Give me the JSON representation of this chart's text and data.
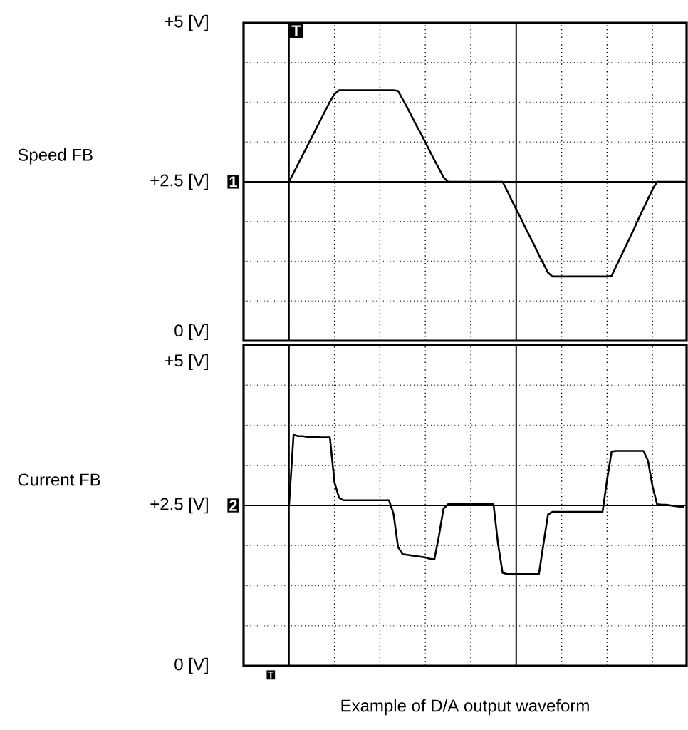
{
  "chart_data": [
    {
      "type": "line",
      "ylabel": "Speed FB",
      "categories": [
        null,
        null,
        null,
        null,
        null,
        null,
        null,
        null,
        null,
        null,
        null,
        null,
        null,
        null,
        null,
        null,
        null,
        null,
        null,
        null,
        null,
        null,
        null,
        null,
        null,
        null,
        null,
        null,
        null,
        null,
        null,
        null,
        null,
        null,
        null,
        null,
        null,
        null,
        null,
        null,
        null,
        null,
        null,
        null,
        null,
        null,
        null,
        null,
        null,
        null,
        null,
        null,
        null,
        null,
        null,
        null,
        null,
        null,
        null,
        null,
        null,
        null,
        null,
        null,
        null,
        null,
        null,
        null,
        null,
        null,
        null,
        null,
        null,
        null,
        null,
        null,
        null,
        null,
        null,
        null,
        null,
        null,
        null,
        null,
        null,
        null,
        null,
        null
      ],
      "ylim": [
        0,
        5
      ],
      "yticks": [
        {
          "value": 0,
          "label": "0 [V]"
        },
        {
          "value": 0.625,
          "label": null
        },
        {
          "value": 1.25,
          "label": null
        },
        {
          "value": 1.875,
          "label": null
        },
        {
          "value": 2.5,
          "label": "+2.5 [V]"
        },
        {
          "value": 3.125,
          "label": null
        },
        {
          "value": 3.75,
          "label": null
        },
        {
          "value": 4.375,
          "label": null
        },
        {
          "value": 5,
          "label": "+5 [V]"
        }
      ],
      "grid": true,
      "annotations": [
        "T",
        "1"
      ],
      "series": [
        {
          "color": "#000000",
          "values": [
            2.5,
            2.64,
            2.78,
            2.92,
            3.06,
            3.2,
            3.34,
            3.48,
            3.62,
            3.76,
            3.88,
            3.94,
            3.94,
            3.94,
            3.94,
            3.94,
            3.94,
            3.94,
            3.94,
            3.94,
            3.94,
            3.94,
            3.94,
            3.94,
            3.93,
            3.8,
            3.67,
            3.53,
            3.39,
            3.26,
            3.12,
            2.98,
            2.84,
            2.71,
            2.57,
            2.5,
            2.5,
            2.5,
            2.5,
            2.5,
            2.5,
            2.5,
            2.5,
            2.5,
            2.5,
            2.5,
            2.5,
            2.5,
            2.36,
            2.21,
            2.07,
            1.93,
            1.78,
            1.64,
            1.5,
            1.35,
            1.21,
            1.07,
            1.01,
            1.01,
            1.01,
            1.01,
            1.01,
            1.01,
            1.01,
            1.01,
            1.01,
            1.01,
            1.01,
            1.01,
            1.01,
            1.02,
            1.17,
            1.32,
            1.47,
            1.62,
            1.77,
            1.93,
            2.08,
            2.23,
            2.38,
            2.5,
            2.5,
            2.5,
            2.5,
            2.5,
            2.5,
            2.5
          ]
        }
      ]
    },
    {
      "type": "line",
      "ylabel": "Current FB",
      "categories": [
        null,
        null,
        null,
        null,
        null,
        null,
        null,
        null,
        null,
        null,
        null,
        null,
        null,
        null,
        null,
        null,
        null,
        null,
        null,
        null,
        null,
        null,
        null,
        null,
        null,
        null,
        null,
        null,
        null,
        null,
        null,
        null,
        null,
        null,
        null,
        null,
        null,
        null,
        null,
        null,
        null,
        null,
        null,
        null,
        null,
        null,
        null,
        null,
        null,
        null,
        null,
        null,
        null,
        null,
        null,
        null,
        null,
        null,
        null,
        null,
        null,
        null,
        null,
        null,
        null,
        null,
        null,
        null,
        null,
        null,
        null,
        null,
        null,
        null,
        null,
        null,
        null,
        null,
        null,
        null,
        null,
        null,
        null,
        null,
        null,
        null,
        null,
        null
      ],
      "ylim": [
        0,
        5
      ],
      "yticks": [
        {
          "value": 0,
          "label": "0 [V]"
        },
        {
          "value": 0.625,
          "label": null
        },
        {
          "value": 1.25,
          "label": null
        },
        {
          "value": 1.875,
          "label": null
        },
        {
          "value": 2.5,
          "label": "+2.5 [V]"
        },
        {
          "value": 3.125,
          "label": null
        },
        {
          "value": 3.75,
          "label": null
        },
        {
          "value": 4.375,
          "label": null
        },
        {
          "value": 5,
          "label": "+5 [V]"
        }
      ],
      "grid": true,
      "annotations": [
        "T",
        "2",
        "Example of D/A output waveform"
      ],
      "series": [
        {
          "color": "#000000",
          "values": [
            2.5,
            3.6,
            3.58,
            3.58,
            3.57,
            3.57,
            3.57,
            3.56,
            3.56,
            3.56,
            2.86,
            2.62,
            2.58,
            2.58,
            2.58,
            2.58,
            2.58,
            2.58,
            2.58,
            2.58,
            2.58,
            2.58,
            2.58,
            2.37,
            1.85,
            1.74,
            1.73,
            1.72,
            1.71,
            1.7,
            1.69,
            1.67,
            1.66,
            2.03,
            2.45,
            2.52,
            2.52,
            2.52,
            2.52,
            2.52,
            2.52,
            2.52,
            2.52,
            2.52,
            2.52,
            2.52,
            1.9,
            1.45,
            1.43,
            1.43,
            1.43,
            1.43,
            1.43,
            1.43,
            1.43,
            1.43,
            1.9,
            2.36,
            2.4,
            2.4,
            2.4,
            2.4,
            2.4,
            2.4,
            2.4,
            2.4,
            2.4,
            2.4,
            2.4,
            2.4,
            2.9,
            3.34,
            3.35,
            3.35,
            3.35,
            3.35,
            3.35,
            3.35,
            3.35,
            3.2,
            2.8,
            2.52,
            2.51,
            2.51,
            2.5,
            2.49,
            2.48,
            2.48
          ]
        }
      ]
    }
  ]
}
